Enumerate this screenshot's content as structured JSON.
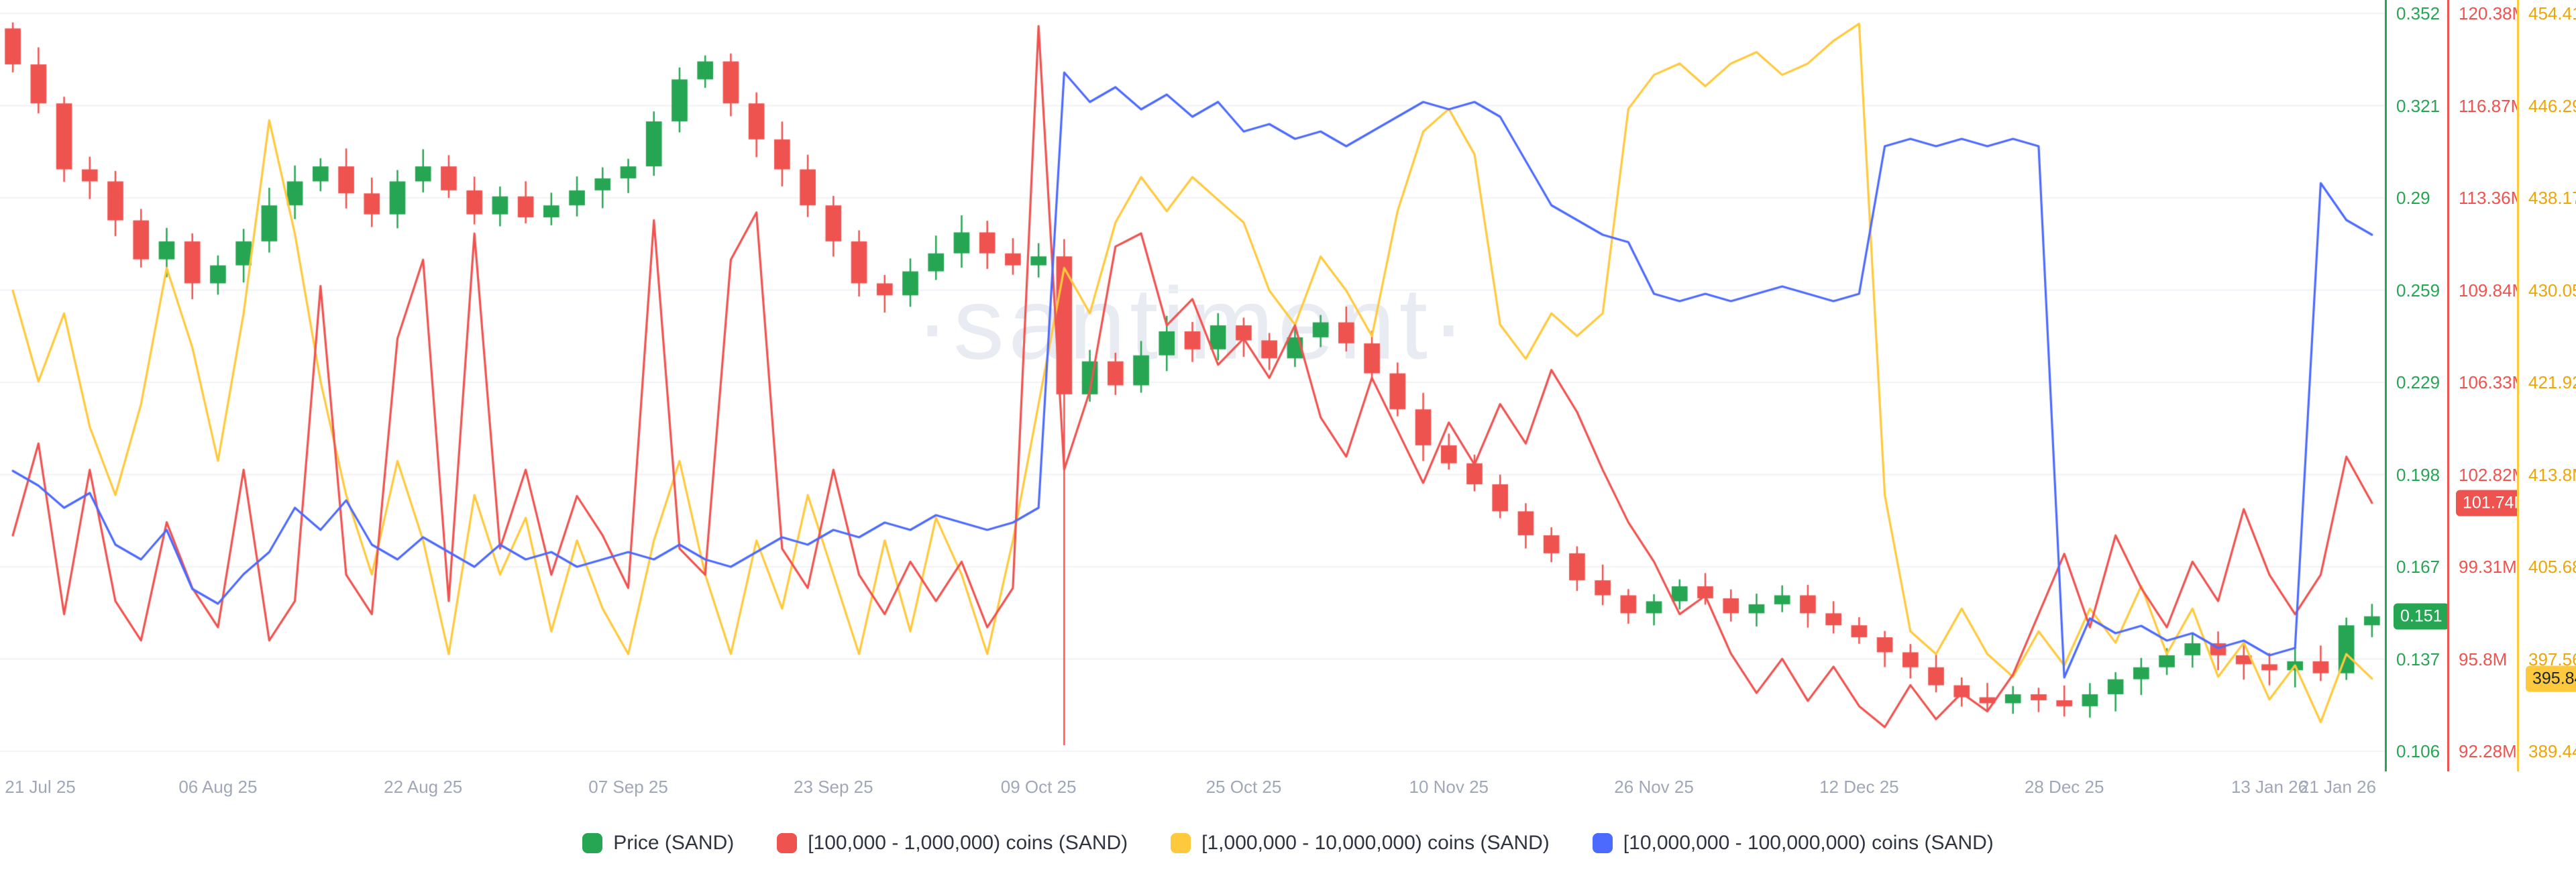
{
  "watermark": "·santiment·",
  "colors": {
    "green": "#26a653",
    "red": "#ef5350",
    "yellow": "#ffc93d",
    "yellow_text": "#eda608",
    "blue": "#4d6aff",
    "grid": "#f0f2f7",
    "x_label": "#a0a8b8",
    "legend_text": "#2f3540",
    "watermark_color": "#e9ebf3"
  },
  "legend": [
    {
      "label": "Price (SAND)",
      "color_key": "green"
    },
    {
      "label": "[100,000  - 1,000,000) coins (SAND)",
      "color_key": "red"
    },
    {
      "label": "[1,000,000 - 10,000,000) coins (SAND)",
      "color_key": "yellow"
    },
    {
      "label": "[10,000,000 - 100,000,000) coins (SAND)",
      "color_key": "blue"
    }
  ],
  "y_axes": [
    {
      "id": "price",
      "color_key": "green",
      "range": [
        0.106,
        0.352
      ],
      "ticks": [
        "0.352",
        "0.321",
        "0.29",
        "0.259",
        "0.229",
        "0.198",
        "0.167",
        "0.137",
        "0.106"
      ],
      "badge": {
        "text": "0.151",
        "value": 0.151,
        "text_color": "#ffffff"
      }
    },
    {
      "id": "supply_100k_1m",
      "color_key": "red",
      "range": [
        92.28,
        120.38
      ],
      "ticks": [
        "120.38M",
        "116.87M",
        "113.36M",
        "109.84M",
        "106.33M",
        "102.82M",
        "99.31M",
        "95.8M",
        "92.28M"
      ],
      "badge": {
        "text": "101.74M",
        "value": 101.74,
        "text_color": "#ffffff"
      }
    },
    {
      "id": "supply_1m_10m",
      "color_key": "yellow",
      "range": [
        389.44,
        454.41
      ],
      "ticks": [
        "454.41M",
        "446.29M",
        "438.17M",
        "430.05M",
        "421.92M",
        "413.8M",
        "405.68M",
        "397.56M",
        "389.44M"
      ],
      "badge": {
        "text": "395.84M",
        "value": 395.84,
        "text_color": "#1f2430"
      }
    }
  ],
  "x_axis": {
    "total_days": 184,
    "labels": [
      {
        "text": "21 Jul 25",
        "day": 0
      },
      {
        "text": "06 Aug 25",
        "day": 16
      },
      {
        "text": "22 Aug 25",
        "day": 32
      },
      {
        "text": "07 Sep 25",
        "day": 48
      },
      {
        "text": "23 Sep 25",
        "day": 64
      },
      {
        "text": "09 Oct 25",
        "day": 80
      },
      {
        "text": "25 Oct 25",
        "day": 96
      },
      {
        "text": "10 Nov 25",
        "day": 112
      },
      {
        "text": "26 Nov 25",
        "day": 128
      },
      {
        "text": "12 Dec 25",
        "day": 144
      },
      {
        "text": "28 Dec 25",
        "day": 160
      },
      {
        "text": "13 Jan 26",
        "day": 176
      },
      {
        "text": "21 Jan 26",
        "day": 184
      }
    ]
  },
  "chart_data": {
    "type": "candlestick+lines",
    "asset": "SAND",
    "x_start": "21 Jul 25",
    "x_end": "21 Jan 26",
    "sample_interval_days": 2,
    "price": {
      "name": "Price (SAND)",
      "axis": "price",
      "first_open": 0.347,
      "last_value_label": "0.151",
      "close": [
        0.335,
        0.322,
        0.3,
        0.296,
        0.283,
        0.27,
        0.276,
        0.262,
        0.268,
        0.276,
        0.288,
        0.296,
        0.301,
        0.292,
        0.285,
        0.296,
        0.301,
        0.293,
        0.285,
        0.291,
        0.284,
        0.288,
        0.293,
        0.297,
        0.301,
        0.316,
        0.33,
        0.336,
        0.322,
        0.31,
        0.3,
        0.288,
        0.276,
        0.262,
        0.258,
        0.266,
        0.272,
        0.279,
        0.272,
        0.268,
        0.271,
        0.225,
        0.236,
        0.228,
        0.238,
        0.246,
        0.24,
        0.248,
        0.243,
        0.237,
        0.244,
        0.249,
        0.242,
        0.232,
        0.22,
        0.208,
        0.202,
        0.195,
        0.186,
        0.178,
        0.172,
        0.163,
        0.158,
        0.152,
        0.156,
        0.161,
        0.157,
        0.152,
        0.155,
        0.158,
        0.152,
        0.148,
        0.144,
        0.139,
        0.134,
        0.128,
        0.124,
        0.122,
        0.125,
        0.123,
        0.121,
        0.125,
        0.13,
        0.134,
        0.138,
        0.142,
        0.138,
        0.135,
        0.133,
        0.136,
        0.132,
        0.148,
        0.151
      ],
      "low_overrides": {
        "41": 0.108
      }
    },
    "series": [
      {
        "name": "[100,000  - 1,000,000) coins (SAND)",
        "color_key": "red",
        "axis": "supply_100k_1m",
        "unit": "M coins",
        "last_value_label": "101.74M",
        "values": [
          100.5,
          104.0,
          97.5,
          103.0,
          98.0,
          96.5,
          101.0,
          98.5,
          97.0,
          103.0,
          96.5,
          98.0,
          110.0,
          99.0,
          97.5,
          108.0,
          111.0,
          98.0,
          112.0,
          100.0,
          103.0,
          99.0,
          102.0,
          100.5,
          98.5,
          112.5,
          100.0,
          99.0,
          111.0,
          112.8,
          100.0,
          98.5,
          103.0,
          99.0,
          97.5,
          99.5,
          98.0,
          99.5,
          97.0,
          98.5,
          119.9,
          103.0,
          106.0,
          111.5,
          112.0,
          108.5,
          109.5,
          107.0,
          108.0,
          106.5,
          108.5,
          105.0,
          103.5,
          106.5,
          104.5,
          102.5,
          104.8,
          103.2,
          105.5,
          104.0,
          106.8,
          105.2,
          103.0,
          101.0,
          99.5,
          97.5,
          98.2,
          96.0,
          94.5,
          95.8,
          94.2,
          95.5,
          94.0,
          93.2,
          94.8,
          93.5,
          94.5,
          93.8,
          95.2,
          97.5,
          99.8,
          97.0,
          100.5,
          98.5,
          97.0,
          99.5,
          98.0,
          101.5,
          99.0,
          97.5,
          99.0,
          103.5,
          101.74
        ]
      },
      {
        "name": "[1,000,000 - 10,000,000) coins (SAND)",
        "color_key": "yellow",
        "axis": "supply_1m_10m",
        "unit": "M coins",
        "last_value_label": "395.84M",
        "values": [
          430,
          422,
          428,
          418,
          412,
          420,
          432,
          425,
          415,
          428,
          445,
          435,
          422,
          412,
          405,
          415,
          408,
          398,
          412,
          405,
          410,
          400,
          408,
          402,
          398,
          408,
          415,
          405,
          398,
          408,
          402,
          412,
          405,
          398,
          408,
          400,
          410,
          405,
          398,
          408,
          420,
          432,
          428,
          436,
          440,
          437,
          440,
          438,
          436,
          430,
          427,
          433,
          430,
          426,
          437,
          444,
          446,
          442,
          427,
          424,
          428,
          426,
          428,
          446,
          449,
          450,
          448,
          450,
          451,
          449,
          450,
          452,
          453.5,
          412,
          400,
          398,
          402,
          398,
          396,
          400,
          397,
          402,
          399,
          404,
          398,
          402,
          396,
          399,
          394,
          397,
          392,
          398,
          395.84
        ]
      },
      {
        "name": "[10,000,000 - 100,000,000) coins (SAND)",
        "color_key": "blue",
        "axis": "hidden_normalized_0_100",
        "unit": "normalized % of plot height (its y-axis is not displayed in the screenshot)",
        "values": [
          38,
          36,
          33,
          35,
          28,
          26,
          30,
          22,
          20,
          24,
          27,
          33,
          30,
          34,
          28,
          26,
          29,
          27,
          25,
          28,
          26,
          27,
          25,
          26,
          27,
          26,
          28,
          26,
          25,
          27,
          29,
          28,
          30,
          29,
          31,
          30,
          32,
          31,
          30,
          31,
          33,
          92,
          88,
          90,
          87,
          89,
          86,
          88,
          84,
          85,
          83,
          84,
          82,
          84,
          86,
          88,
          87,
          88,
          86,
          80,
          74,
          72,
          70,
          69,
          62,
          61,
          62,
          61,
          62,
          63,
          62,
          61,
          62,
          82,
          83,
          82,
          83,
          82,
          83,
          82,
          10,
          18,
          16,
          17,
          15,
          16,
          14,
          15,
          13,
          14,
          77,
          72,
          70
        ]
      }
    ]
  }
}
